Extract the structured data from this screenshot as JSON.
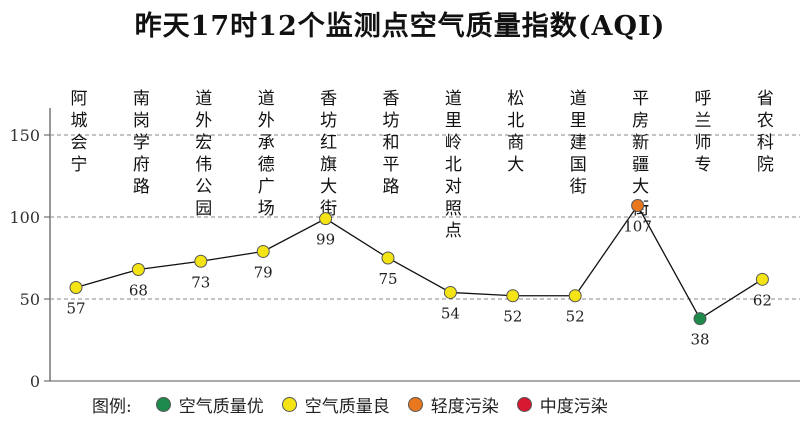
{
  "chart_data": {
    "type": "line",
    "title": "昨天17时12个监测点空气质量指数(AQI)",
    "xlabel": "",
    "ylabel": "",
    "ylim": [
      0,
      160
    ],
    "yticks": [
      0,
      50,
      100,
      150
    ],
    "grid": true,
    "categories": [
      "阿城会宁",
      "南岗学府路",
      "道外宏伟公园",
      "道外承德广场",
      "香坊红旗大街",
      "香坊和平路",
      "道里岭北对照点",
      "松北商大",
      "道里建国街",
      "平房新疆大街",
      "呼兰师专",
      "省农科院"
    ],
    "series": [
      {
        "values": [
          57,
          68,
          73,
          79,
          99,
          75,
          54,
          52,
          52,
          107,
          38,
          62
        ],
        "levels": [
          "good",
          "good",
          "good",
          "good",
          "good",
          "good",
          "good",
          "good",
          "good",
          "light",
          "excellent",
          "good"
        ]
      }
    ],
    "legend": {
      "title": "图例:",
      "placement": "bottom-left",
      "items": [
        {
          "label": "空气质量优",
          "level": "excellent",
          "color": "#1e8a4c"
        },
        {
          "label": "空气质量良",
          "level": "good",
          "color": "#f5e415"
        },
        {
          "label": "轻度污染",
          "level": "light",
          "color": "#e8771e"
        },
        {
          "label": "中度污染",
          "level": "moderate",
          "color": "#d81830"
        }
      ]
    }
  }
}
